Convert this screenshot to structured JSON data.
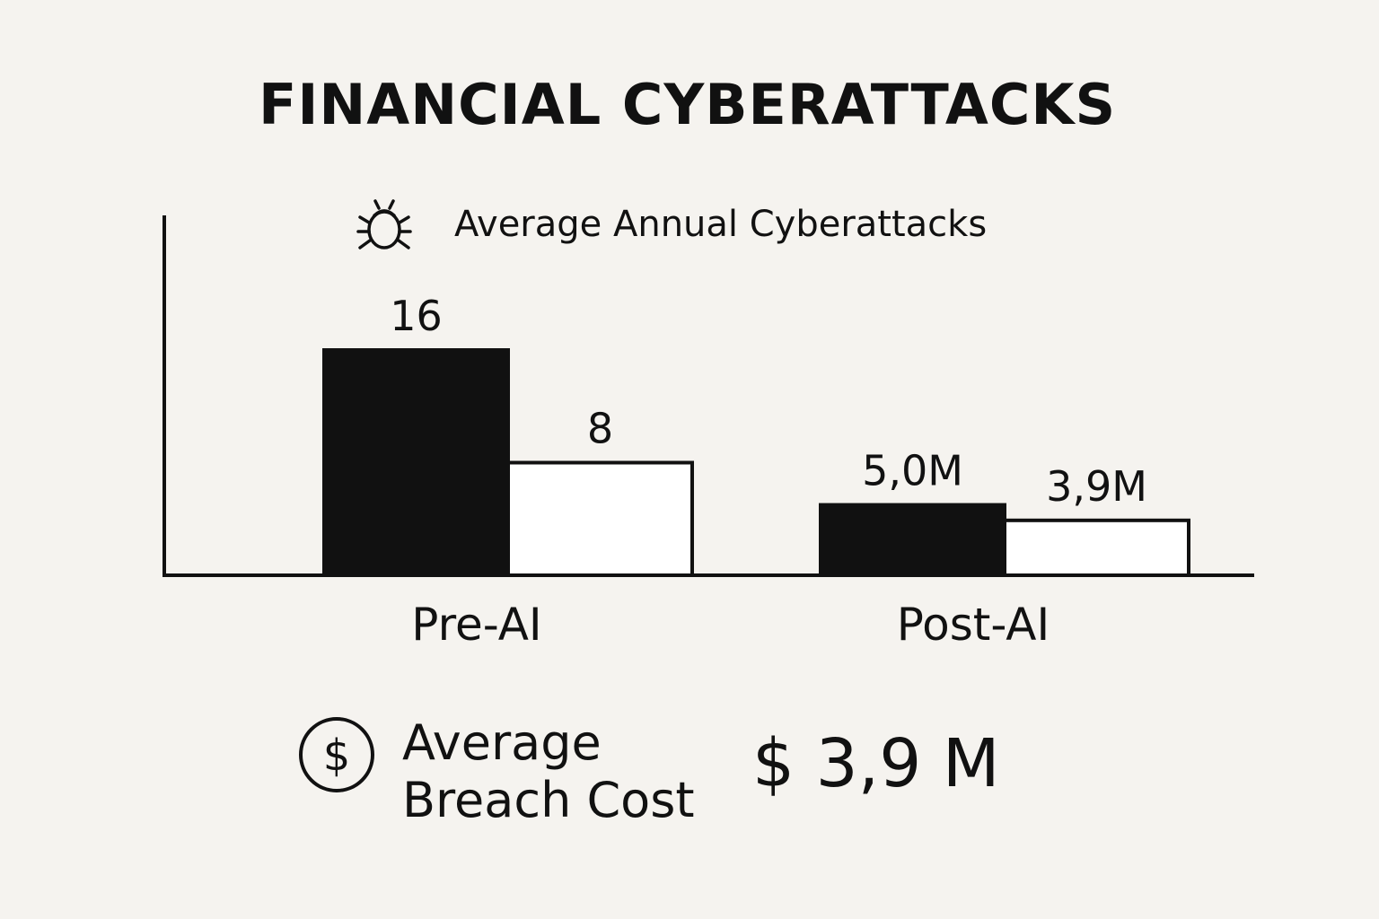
{
  "chart_data": {
    "type": "bar",
    "title": "FINANCIAL CYBERATTACKS",
    "legend": {
      "label": "Average Annual Cyberattacks",
      "icon": "bug-icon",
      "placement": "top"
    },
    "categories": [
      "Pre-AI",
      "Post-AI"
    ],
    "groups": [
      {
        "category": "Pre-AI",
        "bars": [
          {
            "value": 16,
            "label": "16",
            "fill": "#111111"
          },
          {
            "value": 8,
            "label": "8",
            "fill": "#ffffff"
          }
        ]
      },
      {
        "category": "Post-AI",
        "bars": [
          {
            "value": 5.0,
            "label": "5,0M",
            "fill": "#111111"
          },
          {
            "value": 3.9,
            "label": "3,9M",
            "fill": "#ffffff"
          }
        ]
      }
    ],
    "ylim": [
      0,
      20
    ],
    "grid": false
  },
  "footer": {
    "icon": "dollar-circle-icon",
    "label_line1": "Average",
    "label_line2": "Breach Cost",
    "value": "$ 3,9 M"
  },
  "colors": {
    "background": "#f5f3ef",
    "ink": "#111111",
    "light_bar": "#ffffff"
  }
}
